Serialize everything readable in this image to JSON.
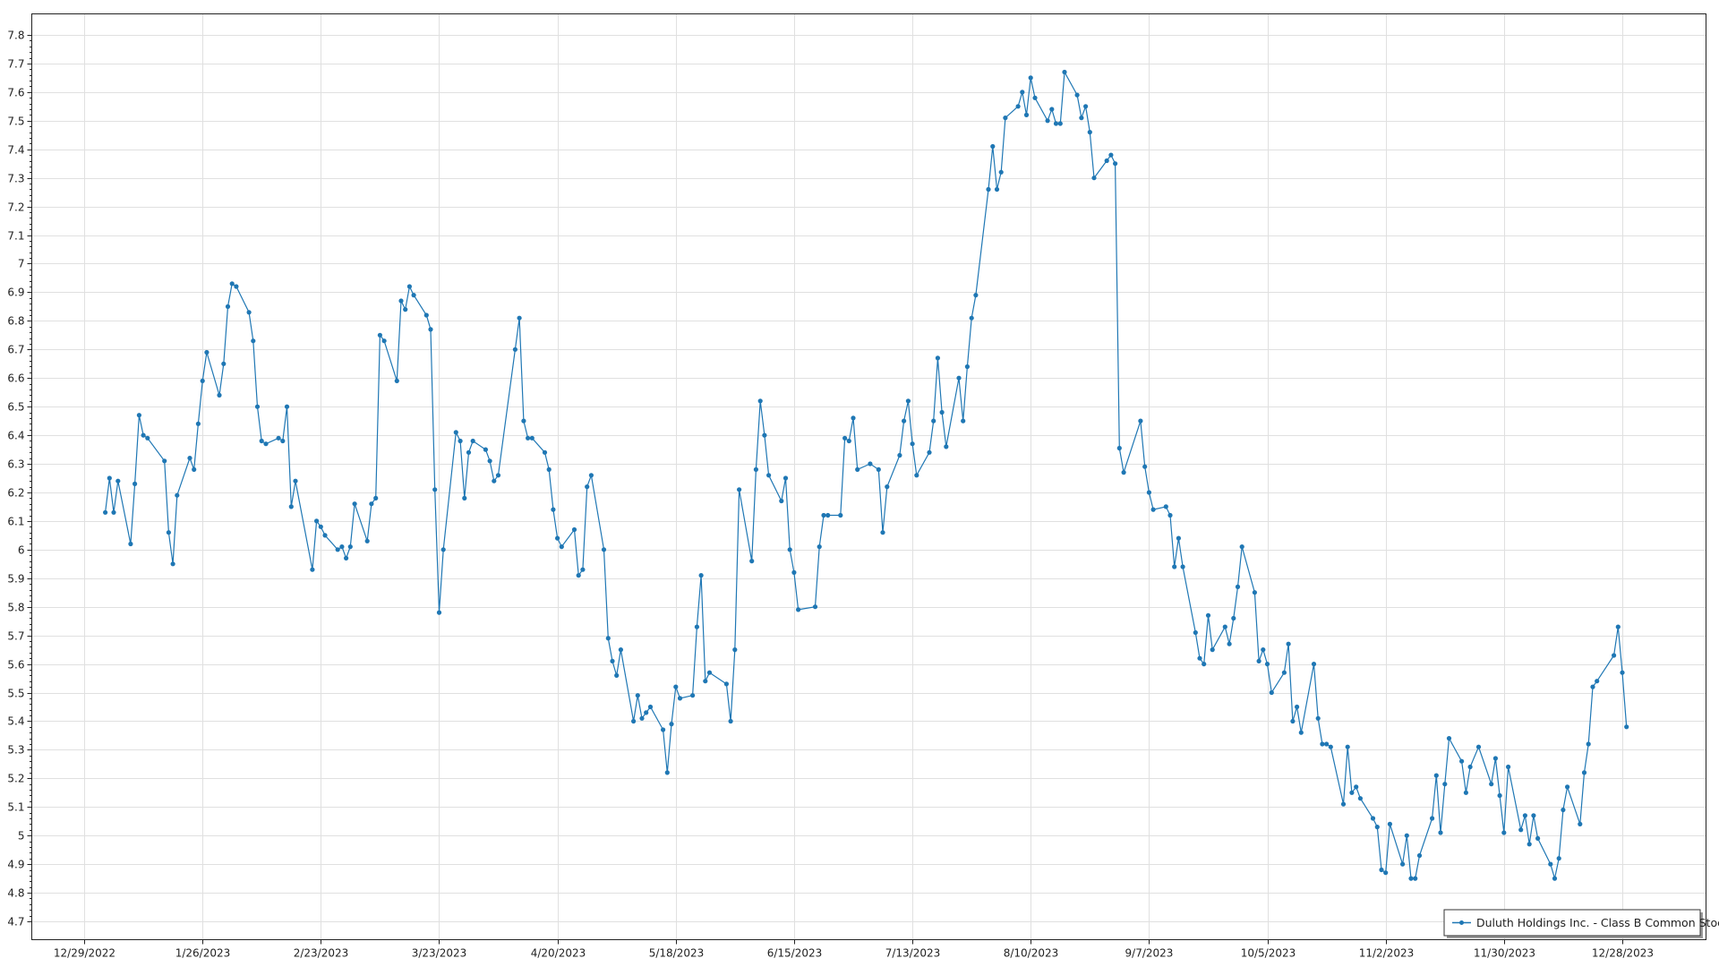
{
  "chart_data": {
    "type": "line",
    "title": "",
    "xlabel": "",
    "ylabel": "",
    "ylim": [
      4.7,
      7.8
    ],
    "y_tick_step": 0.1,
    "xlim": [
      "2022-12-29",
      "2023-12-28"
    ],
    "x_ticks": [
      "12/29/2022",
      "1/26/2023",
      "2/23/2023",
      "3/23/2023",
      "4/20/2023",
      "5/18/2023",
      "6/15/2023",
      "7/13/2023",
      "8/10/2023",
      "9/7/2023",
      "10/5/2023",
      "11/2/2023",
      "11/30/2023",
      "12/28/2023"
    ],
    "grid": true,
    "legend_position": "bottom-right",
    "series": [
      {
        "name": "Duluth Holdings Inc. - Class B Common Stock",
        "color": "#1f77b4",
        "x": [
          "2023-01-03",
          "2023-01-04",
          "2023-01-05",
          "2023-01-06",
          "2023-01-09",
          "2023-01-10",
          "2023-01-11",
          "2023-01-12",
          "2023-01-13",
          "2023-01-17",
          "2023-01-18",
          "2023-01-19",
          "2023-01-20",
          "2023-01-23",
          "2023-01-24",
          "2023-01-25",
          "2023-01-26",
          "2023-01-27",
          "2023-01-30",
          "2023-01-31",
          "2023-02-01",
          "2023-02-02",
          "2023-02-03",
          "2023-02-06",
          "2023-02-07",
          "2023-02-08",
          "2023-02-09",
          "2023-02-10",
          "2023-02-13",
          "2023-02-14",
          "2023-02-15",
          "2023-02-16",
          "2023-02-17",
          "2023-02-21",
          "2023-02-22",
          "2023-02-23",
          "2023-02-24",
          "2023-02-27",
          "2023-02-28",
          "2023-03-01",
          "2023-03-02",
          "2023-03-03",
          "2023-03-06",
          "2023-03-07",
          "2023-03-08",
          "2023-03-09",
          "2023-03-10",
          "2023-03-13",
          "2023-03-14",
          "2023-03-15",
          "2023-03-16",
          "2023-03-17",
          "2023-03-20",
          "2023-03-21",
          "2023-03-22",
          "2023-03-23",
          "2023-03-24",
          "2023-03-27",
          "2023-03-28",
          "2023-03-29",
          "2023-03-30",
          "2023-03-31",
          "2023-04-03",
          "2023-04-04",
          "2023-04-05",
          "2023-04-06",
          "2023-04-10",
          "2023-04-11",
          "2023-04-12",
          "2023-04-13",
          "2023-04-14",
          "2023-04-17",
          "2023-04-18",
          "2023-04-19",
          "2023-04-20",
          "2023-04-21",
          "2023-04-24",
          "2023-04-25",
          "2023-04-26",
          "2023-04-27",
          "2023-04-28",
          "2023-05-01",
          "2023-05-02",
          "2023-05-03",
          "2023-05-04",
          "2023-05-05",
          "2023-05-08",
          "2023-05-09",
          "2023-05-10",
          "2023-05-11",
          "2023-05-12",
          "2023-05-15",
          "2023-05-16",
          "2023-05-17",
          "2023-05-18",
          "2023-05-19",
          "2023-05-22",
          "2023-05-23",
          "2023-05-24",
          "2023-05-25",
          "2023-05-26",
          "2023-05-30",
          "2023-05-31",
          "2023-06-01",
          "2023-06-02",
          "2023-06-05",
          "2023-06-06",
          "2023-06-07",
          "2023-06-08",
          "2023-06-09",
          "2023-06-12",
          "2023-06-13",
          "2023-06-14",
          "2023-06-15",
          "2023-06-16",
          "2023-06-20",
          "2023-06-21",
          "2023-06-22",
          "2023-06-23",
          "2023-06-26",
          "2023-06-27",
          "2023-06-28",
          "2023-06-29",
          "2023-06-30",
          "2023-07-03",
          "2023-07-05",
          "2023-07-06",
          "2023-07-07",
          "2023-07-10",
          "2023-07-11",
          "2023-07-12",
          "2023-07-13",
          "2023-07-14",
          "2023-07-17",
          "2023-07-18",
          "2023-07-19",
          "2023-07-20",
          "2023-07-21",
          "2023-07-24",
          "2023-07-25",
          "2023-07-26",
          "2023-07-27",
          "2023-07-28",
          "2023-07-31",
          "2023-08-01",
          "2023-08-02",
          "2023-08-03",
          "2023-08-04",
          "2023-08-07",
          "2023-08-08",
          "2023-08-09",
          "2023-08-10",
          "2023-08-11",
          "2023-08-14",
          "2023-08-15",
          "2023-08-16",
          "2023-08-17",
          "2023-08-18",
          "2023-08-21",
          "2023-08-22",
          "2023-08-23",
          "2023-08-24",
          "2023-08-25",
          "2023-08-28",
          "2023-08-29",
          "2023-08-30",
          "2023-08-31",
          "2023-09-01",
          "2023-09-05",
          "2023-09-06",
          "2023-09-07",
          "2023-09-08",
          "2023-09-11",
          "2023-09-12",
          "2023-09-13",
          "2023-09-14",
          "2023-09-15",
          "2023-09-18",
          "2023-09-19",
          "2023-09-20",
          "2023-09-21",
          "2023-09-22",
          "2023-09-25",
          "2023-09-26",
          "2023-09-27",
          "2023-09-28",
          "2023-09-29",
          "2023-10-02",
          "2023-10-03",
          "2023-10-04",
          "2023-10-05",
          "2023-10-06",
          "2023-10-09",
          "2023-10-10",
          "2023-10-11",
          "2023-10-12",
          "2023-10-13",
          "2023-10-16",
          "2023-10-17",
          "2023-10-18",
          "2023-10-19",
          "2023-10-20",
          "2023-10-23",
          "2023-10-24",
          "2023-10-25",
          "2023-10-26",
          "2023-10-27",
          "2023-10-30",
          "2023-10-31",
          "2023-11-01",
          "2023-11-02",
          "2023-11-03",
          "2023-11-06",
          "2023-11-07",
          "2023-11-08",
          "2023-11-09",
          "2023-11-10",
          "2023-11-13",
          "2023-11-14",
          "2023-11-15",
          "2023-11-16",
          "2023-11-17",
          "2023-11-20",
          "2023-11-21",
          "2023-11-22",
          "2023-11-24",
          "2023-11-27",
          "2023-11-28",
          "2023-11-29",
          "2023-11-30",
          "2023-12-01",
          "2023-12-04",
          "2023-12-05",
          "2023-12-06",
          "2023-12-07",
          "2023-12-08",
          "2023-12-11",
          "2023-12-12",
          "2023-12-13",
          "2023-12-14",
          "2023-12-15",
          "2023-12-18",
          "2023-12-19",
          "2023-12-20",
          "2023-12-21",
          "2023-12-22",
          "2023-12-26",
          "2023-12-27",
          "2023-12-28",
          "2023-12-29"
        ],
        "y": [
          6.13,
          6.25,
          6.13,
          6.24,
          6.02,
          6.23,
          6.47,
          6.4,
          6.39,
          6.31,
          6.06,
          5.95,
          6.19,
          6.32,
          6.28,
          6.44,
          6.59,
          6.69,
          6.54,
          6.65,
          6.85,
          6.93,
          6.92,
          6.83,
          6.73,
          6.5,
          6.38,
          6.37,
          6.39,
          6.38,
          6.5,
          6.15,
          6.24,
          5.93,
          6.1,
          6.08,
          6.05,
          6.0,
          6.01,
          5.97,
          6.01,
          6.16,
          6.03,
          6.16,
          6.18,
          6.75,
          6.73,
          6.59,
          6.87,
          6.84,
          6.92,
          6.89,
          6.82,
          6.77,
          6.21,
          5.78,
          6.0,
          6.41,
          6.38,
          6.18,
          6.34,
          6.38,
          6.35,
          6.31,
          6.24,
          6.26,
          6.7,
          6.81,
          6.45,
          6.39,
          6.39,
          6.34,
          6.28,
          6.14,
          6.04,
          6.01,
          6.07,
          5.91,
          5.93,
          6.22,
          6.26,
          6.0,
          5.69,
          5.61,
          5.56,
          5.65,
          5.4,
          5.49,
          5.41,
          5.43,
          5.45,
          5.37,
          5.22,
          5.39,
          5.52,
          5.48,
          5.49,
          5.73,
          5.91,
          5.54,
          5.57,
          5.53,
          5.4,
          5.65,
          6.21,
          5.96,
          6.28,
          6.52,
          6.4,
          6.26,
          6.17,
          6.25,
          6.0,
          5.92,
          5.79,
          5.8,
          6.01,
          6.12,
          6.12,
          6.12,
          6.39,
          6.38,
          6.46,
          6.28,
          6.3,
          6.28,
          6.06,
          6.22,
          6.33,
          6.45,
          6.52,
          6.37,
          6.26,
          6.34,
          6.45,
          6.67,
          6.48,
          6.36,
          6.6,
          6.45,
          6.64,
          6.81,
          6.89,
          7.26,
          7.41,
          7.26,
          7.32,
          7.51,
          7.55,
          7.6,
          7.52,
          7.65,
          7.58,
          7.5,
          7.54,
          7.49,
          7.49,
          7.67,
          7.59,
          7.51,
          7.55,
          7.46,
          7.3,
          7.36,
          7.38,
          7.35,
          6.355,
          6.27,
          6.45,
          6.29,
          6.2,
          6.14,
          6.15,
          6.12,
          5.94,
          6.04,
          5.94,
          5.71,
          5.62,
          5.6,
          5.77,
          5.65,
          5.73,
          5.67,
          5.76,
          5.87,
          6.01,
          5.85,
          5.61,
          5.65,
          5.6,
          5.5,
          5.57,
          5.67,
          5.4,
          5.45,
          5.36,
          5.6,
          5.41,
          5.32,
          5.32,
          5.31,
          5.11,
          5.31,
          5.15,
          5.17,
          5.13,
          5.06,
          5.03,
          4.88,
          4.87,
          5.04,
          4.9,
          5.0,
          4.85,
          4.85,
          4.93,
          5.06,
          5.21,
          5.01,
          5.18,
          5.34,
          5.26,
          5.15,
          5.24,
          5.31,
          5.18,
          5.27,
          5.14,
          5.01,
          5.24,
          5.02,
          5.07,
          4.97,
          5.07,
          4.99,
          4.9,
          4.85,
          4.92,
          5.09,
          5.17,
          5.04,
          5.22,
          5.32,
          5.52,
          5.54,
          5.63,
          5.73,
          5.57,
          5.38
        ]
      }
    ]
  }
}
